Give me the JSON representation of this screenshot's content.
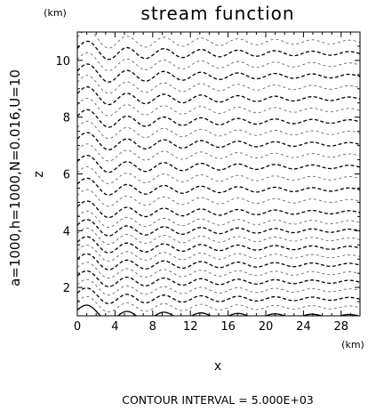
{
  "chart_data": {
    "type": "contour",
    "title": "stream function",
    "xlabel": "x",
    "ylabel": "z",
    "x_unit": "(km)",
    "y_unit": "(km)",
    "x_ticks": [
      "0",
      "4",
      "8",
      "12",
      "16",
      "20",
      "24",
      "28"
    ],
    "y_ticks": [
      "2",
      "4",
      "6",
      "8",
      "10"
    ],
    "xlim": [
      0,
      30
    ],
    "ylim": [
      1,
      11
    ],
    "parameters": "a=1000,h=1000,N=0.016,U=10",
    "contour_interval": "CONTOUR INTERVAL = 5.000E+03",
    "wave": {
      "ambient_lift_km": 0.32,
      "wavelength_km": 3.93,
      "decay": 0.05,
      "growth_with_height": 0.033
    },
    "contours": [
      {
        "z0": 1.0,
        "style": "solid"
      },
      {
        "z0": 1.3,
        "style": "dashed"
      },
      {
        "z0": 1.6,
        "style": "dashed"
      },
      {
        "z0": 1.9,
        "style": "dashed"
      },
      {
        "z0": 2.2,
        "style": "dashed"
      },
      {
        "z0": 2.5,
        "style": "dashed"
      },
      {
        "z0": 2.8,
        "style": "dashed"
      },
      {
        "z0": 3.1,
        "style": "dashed"
      },
      {
        "z0": 3.4,
        "style": "dashed"
      },
      {
        "z0": 3.7,
        "style": "dashed"
      },
      {
        "z0": 4.0,
        "style": "dashed"
      },
      {
        "z0": 4.3,
        "style": "dashed"
      },
      {
        "z0": 4.65,
        "style": "dashed"
      },
      {
        "z0": 5.05,
        "style": "dashed"
      },
      {
        "z0": 5.45,
        "style": "dashed"
      },
      {
        "z0": 5.85,
        "style": "dashed"
      },
      {
        "z0": 6.25,
        "style": "dashed"
      },
      {
        "z0": 6.65,
        "style": "dashed"
      },
      {
        "z0": 7.05,
        "style": "dashed"
      },
      {
        "z0": 7.45,
        "style": "dashed"
      },
      {
        "z0": 7.85,
        "style": "dashed"
      },
      {
        "z0": 8.25,
        "style": "dashed"
      },
      {
        "z0": 8.65,
        "style": "dashed"
      },
      {
        "z0": 9.05,
        "style": "dashed"
      },
      {
        "z0": 9.45,
        "style": "dashed"
      },
      {
        "z0": 9.85,
        "style": "dashed"
      },
      {
        "z0": 10.25,
        "style": "dashed"
      },
      {
        "z0": 10.65,
        "style": "dashed"
      }
    ]
  }
}
